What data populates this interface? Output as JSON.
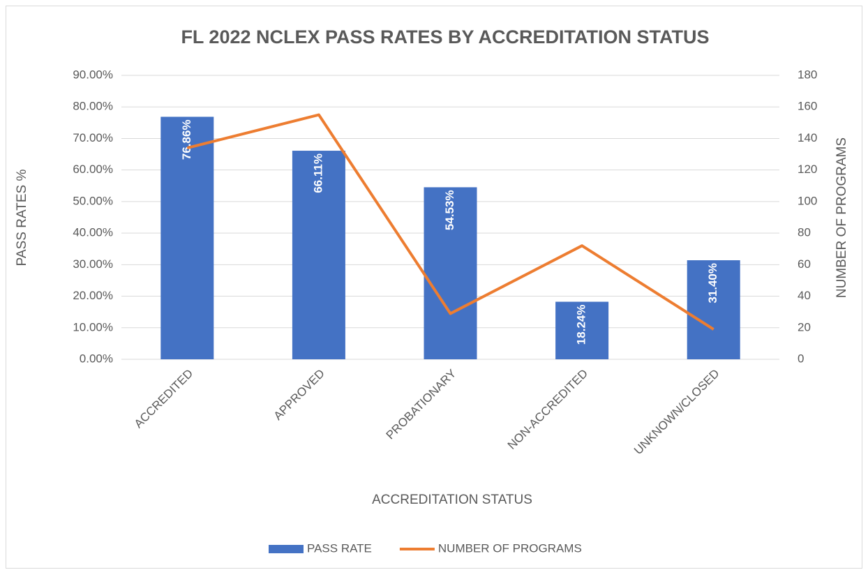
{
  "chart_data": {
    "type": "combo",
    "title": "FL 2022 NCLEX PASS RATES BY ACCREDITATION STATUS",
    "x_label": "ACCREDITATION STATUS",
    "y_label": "PASS RATES %",
    "y2_label": "NUMBER OF PROGRAMS",
    "categories": [
      "ACCREDITED",
      "APPROVED",
      "PROBATIONARY",
      "NON-ACCREDITED",
      "UNKNOWN/CLOSED"
    ],
    "series": [
      {
        "name": "PASS RATE",
        "type": "bar",
        "color": "#4472c4",
        "values": [
          76.86,
          66.11,
          54.53,
          18.24,
          31.4
        ],
        "value_labels": [
          "76.86%",
          "66.11%",
          "54.53%",
          "18.24%",
          "31.40%"
        ]
      },
      {
        "name": "NUMBER OF PROGRAMS",
        "type": "line",
        "axis": "y2",
        "color": "#ed7d31",
        "values": [
          134,
          155,
          29,
          72,
          19
        ]
      }
    ],
    "ylim": [
      0,
      90
    ],
    "yticks": [
      {
        "value": 0,
        "label": "0.00%"
      },
      {
        "value": 10,
        "label": "10.00%"
      },
      {
        "value": 20,
        "label": "20.00%"
      },
      {
        "value": 30,
        "label": "30.00%"
      },
      {
        "value": 40,
        "label": "40.00%"
      },
      {
        "value": 50,
        "label": "50.00%"
      },
      {
        "value": 60,
        "label": "60.00%"
      },
      {
        "value": 70,
        "label": "70.00%"
      },
      {
        "value": 80,
        "label": "80.00%"
      },
      {
        "value": 90,
        "label": "90.00%"
      }
    ],
    "y2lim": [
      0,
      180
    ],
    "y2ticks": [
      0,
      20,
      40,
      60,
      80,
      100,
      120,
      140,
      160,
      180
    ],
    "grid": true,
    "legend": "bottom"
  }
}
